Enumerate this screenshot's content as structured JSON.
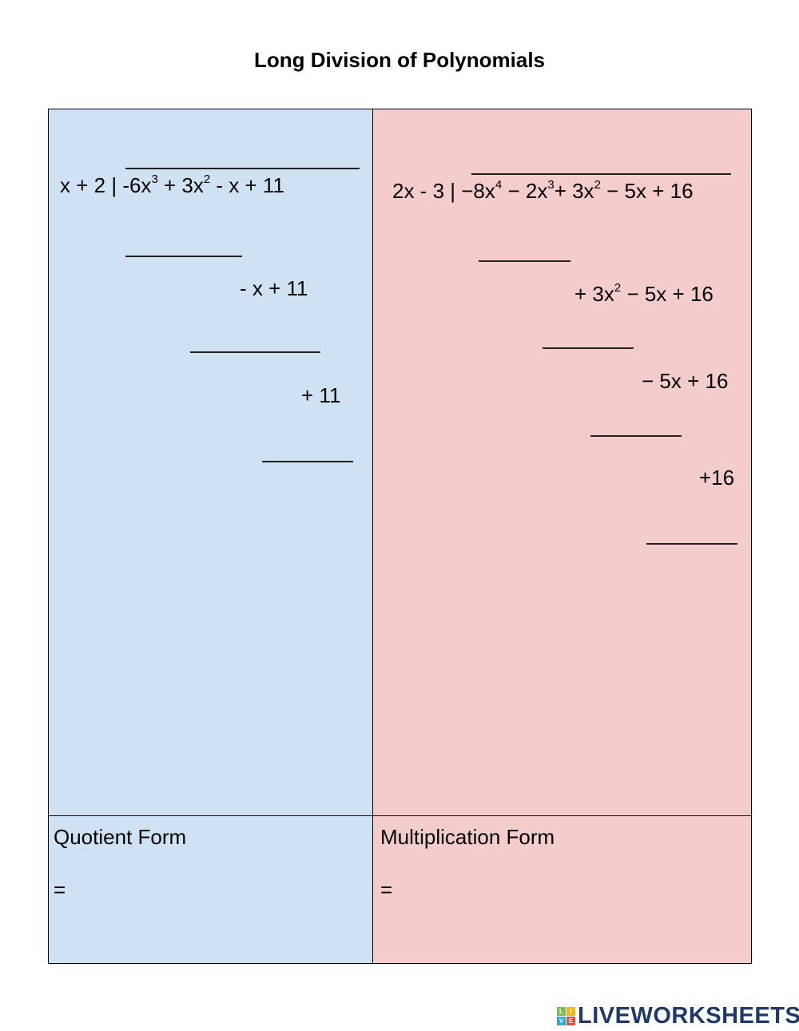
{
  "title": "Long Division of Polynomials",
  "colors": {
    "left_bg": "#cfe2f3",
    "right_bg": "#f4cccc"
  },
  "left": {
    "divisor": "x + 2 |",
    "dividend": {
      "t1": "-6x",
      "e1": "3",
      "t2": " + 3x",
      "e2": "2",
      "t3": " - x + 11"
    },
    "step1": "- x + 11",
    "step2": "+ 11",
    "form_label": "Quotient Form",
    "equals": "="
  },
  "right": {
    "divisor": "2x - 3 |",
    "dividend": {
      "t1": "−8x",
      "e1": "4",
      "t2": " − 2x",
      "e2": "3",
      "t3": "+ 3x",
      "e3": "2",
      "t4": " − 5x + 16"
    },
    "step1": {
      "t1": "+ 3x",
      "e1": "2",
      "t2": " − 5x + 16"
    },
    "step2": "− 5x + 16",
    "step3": "+16",
    "form_label": "Multiplication Form",
    "equals": "="
  },
  "logo": {
    "text": "LIVEWORKSHEETS",
    "letters": [
      "L",
      "I",
      "V",
      "E"
    ]
  }
}
